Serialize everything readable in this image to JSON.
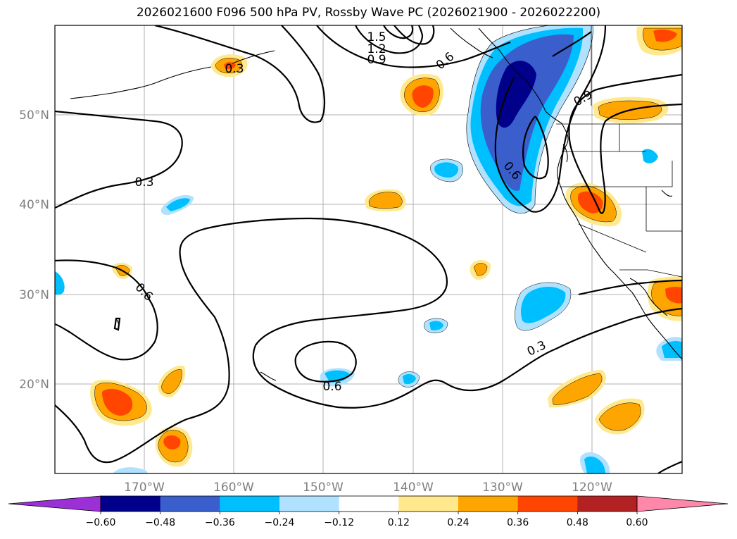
{
  "title": "2026021600 F096 500 hPa PV, Rossby Wave PC (2026021900 - 2026022200)",
  "lat_labels": [
    "50°N",
    "40°N",
    "30°N",
    "20°N"
  ],
  "lon_labels": [
    "170°W",
    "160°W",
    "150°W",
    "140°W",
    "130°W",
    "120°W"
  ],
  "contour_labels": [
    "1.5",
    "1.2",
    "0.9",
    "0.6",
    "0.9",
    "0.3",
    "0.6",
    "0.6",
    "0.6",
    "0.3",
    "0.3"
  ],
  "colorbar": {
    "ticks": [
      "−0.60",
      "−0.48",
      "−0.36",
      "−0.24",
      "−0.12",
      "0.12",
      "0.24",
      "0.36",
      "0.48",
      "0.60"
    ],
    "colors": [
      "#9b30d6",
      "#00008b",
      "#3a5fcd",
      "#00bfff",
      "#b0e2ff",
      "#ffffff",
      "#ffe98c",
      "#ffa500",
      "#ff4500",
      "#b22222",
      "#ff88aa"
    ]
  }
}
